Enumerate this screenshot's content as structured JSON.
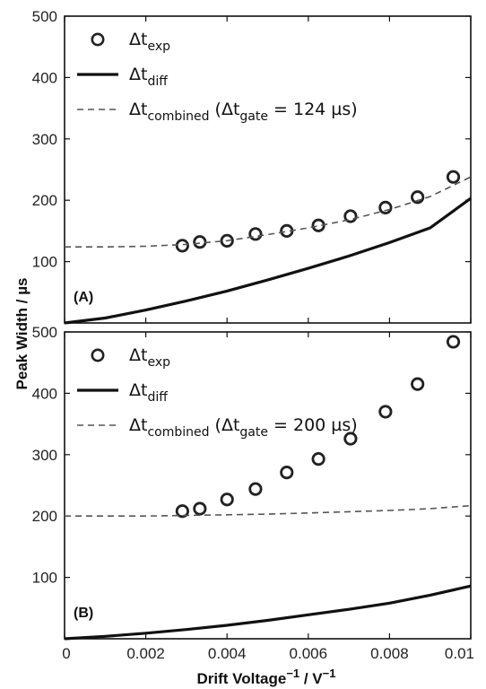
{
  "figure": {
    "ylabel_main": "Peak Width / ",
    "ylabel_unit": "µs",
    "xlabel_main": "Drift Voltage",
    "xlabel_sup1": "−1",
    "xlabel_mid": " / V",
    "xlabel_sup2": "−1"
  },
  "chart_data": [
    {
      "type": "scatter",
      "panel_label": "(A)",
      "xlim": [
        0,
        0.01
      ],
      "ylim": [
        0,
        500
      ],
      "xticks": [
        "0",
        "0.002",
        "0.004",
        "0.006",
        "0.008",
        "0.01"
      ],
      "yticks": [
        "100",
        "200",
        "300",
        "400",
        "500"
      ],
      "grid": false,
      "legend_position": "top-left",
      "series": [
        {
          "name": "Δt_exp",
          "kind": "markers",
          "color": "#222222",
          "x": [
            0.0029,
            0.00333,
            0.004,
            0.0047,
            0.00547,
            0.00625,
            0.00704,
            0.0079,
            0.00869,
            0.00957
          ],
          "y": [
            126,
            132,
            134,
            145,
            150,
            159,
            174,
            188,
            205,
            238
          ]
        },
        {
          "name": "Δt_diff",
          "kind": "solid-line",
          "color": "#111111",
          "x": [
            0,
            0.001,
            0.002,
            0.003,
            0.004,
            0.005,
            0.006,
            0.007,
            0.008,
            0.009,
            0.01
          ],
          "y": [
            0,
            8,
            21,
            36,
            52,
            70,
            89,
            109,
            131,
            155,
            203
          ]
        },
        {
          "name": "Δt_combined (Δt_gate = 124 µs)",
          "kind": "dashed-line",
          "color": "#555555",
          "x": [
            0,
            0.001,
            0.002,
            0.003,
            0.004,
            0.005,
            0.006,
            0.007,
            0.008,
            0.009,
            0.01
          ],
          "y": [
            124,
            124,
            125,
            128,
            134,
            144,
            155,
            168,
            185,
            206,
            238
          ]
        }
      ],
      "legend": [
        {
          "main": "Δt",
          "sub": "exp",
          "tail": ""
        },
        {
          "main": "Δt",
          "sub": "diff",
          "tail": ""
        },
        {
          "main": "Δt",
          "sub": "combined",
          "tail": " (Δt",
          "sub2": "gate",
          "tail2": " = 124 µs)"
        }
      ]
    },
    {
      "type": "scatter",
      "panel_label": "(B)",
      "xlim": [
        0,
        0.01
      ],
      "ylim": [
        0,
        500
      ],
      "xticks": [
        "0",
        "0.002",
        "0.004",
        "0.006",
        "0.008",
        "0.01"
      ],
      "yticks": [
        "100",
        "200",
        "300",
        "400",
        "500"
      ],
      "grid": false,
      "legend_position": "top-left",
      "series": [
        {
          "name": "Δt_exp",
          "kind": "markers",
          "color": "#222222",
          "x": [
            0.0029,
            0.00333,
            0.004,
            0.0047,
            0.00547,
            0.00625,
            0.00704,
            0.0079,
            0.00869,
            0.00957
          ],
          "y": [
            208,
            212,
            227,
            244,
            271,
            293,
            326,
            370,
            415,
            484
          ]
        },
        {
          "name": "Δt_diff",
          "kind": "solid-line",
          "color": "#111111",
          "x": [
            0,
            0.001,
            0.002,
            0.003,
            0.004,
            0.005,
            0.006,
            0.007,
            0.008,
            0.009,
            0.01
          ],
          "y": [
            0,
            4,
            9,
            15,
            22,
            30,
            39,
            48,
            58,
            71,
            86
          ]
        },
        {
          "name": "Δt_combined (Δt_gate = 200 µs)",
          "kind": "dashed-line",
          "color": "#555555",
          "x": [
            0,
            0.001,
            0.002,
            0.003,
            0.004,
            0.005,
            0.006,
            0.007,
            0.008,
            0.009,
            0.01
          ],
          "y": [
            200,
            200,
            200,
            201,
            202,
            203,
            205,
            207,
            209,
            212,
            217
          ]
        }
      ],
      "legend": [
        {
          "main": "Δt",
          "sub": "exp",
          "tail": ""
        },
        {
          "main": "Δt",
          "sub": "diff",
          "tail": ""
        },
        {
          "main": "Δt",
          "sub": "combined",
          "tail": " (Δt",
          "sub2": "gate",
          "tail2": " = 200 µs)"
        }
      ]
    }
  ]
}
